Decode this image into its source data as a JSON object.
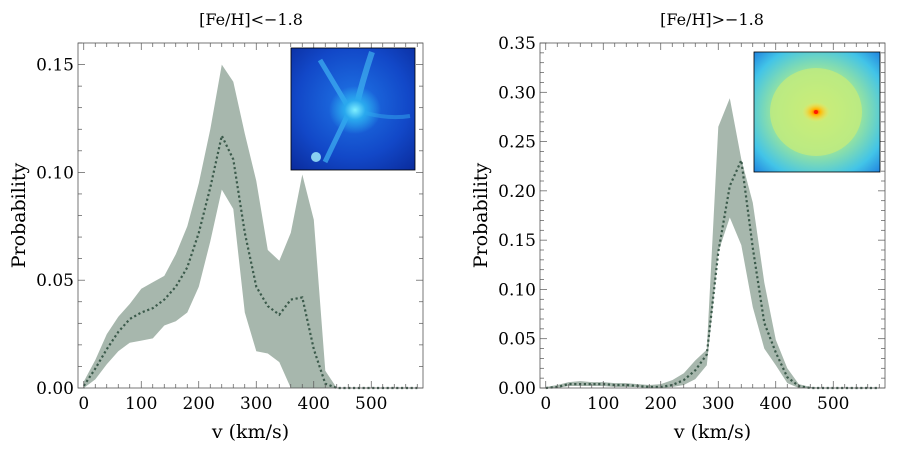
{
  "chart_data": [
    {
      "type": "line",
      "title": "[Fe/H]<−1.8",
      "xlabel": "v (km/s)",
      "ylabel": "Probability",
      "xlim": [
        -10,
        590
      ],
      "ylim": [
        0,
        0.16
      ],
      "xticks": [
        0,
        100,
        200,
        300,
        400,
        500
      ],
      "xtick_labels": [
        "0",
        "100",
        "200",
        "300",
        "400",
        "500"
      ],
      "yticks": [
        0,
        0.05,
        0.1,
        0.15
      ],
      "ytick_labels": [
        "0.00",
        "0.05",
        "0.10",
        "0.15"
      ],
      "inset": "image-inset",
      "colors": {
        "band": "#a7b7ad",
        "line": "#3b5a4b"
      },
      "series": [
        {
          "name": "median",
          "x": [
            0,
            20,
            40,
            60,
            80,
            100,
            120,
            140,
            160,
            180,
            200,
            220,
            240,
            260,
            280,
            300,
            320,
            340,
            360,
            380,
            400,
            420,
            440,
            460,
            480,
            500,
            520,
            540,
            560,
            580
          ],
          "values": [
            0.001,
            0.009,
            0.018,
            0.026,
            0.032,
            0.035,
            0.037,
            0.041,
            0.047,
            0.056,
            0.072,
            0.093,
            0.117,
            0.106,
            0.072,
            0.047,
            0.038,
            0.034,
            0.041,
            0.042,
            0.018,
            0.002,
            0,
            0,
            0,
            0,
            0,
            0,
            0,
            0
          ],
          "lower": [
            0,
            0.004,
            0.011,
            0.017,
            0.021,
            0.022,
            0.023,
            0.029,
            0.031,
            0.035,
            0.047,
            0.068,
            0.092,
            0.083,
            0.035,
            0.017,
            0.016,
            0.012,
            0,
            0,
            0,
            0,
            0,
            0,
            0,
            0,
            0,
            0,
            0,
            0
          ],
          "upper": [
            0.003,
            0.013,
            0.025,
            0.033,
            0.039,
            0.046,
            0.049,
            0.052,
            0.062,
            0.075,
            0.095,
            0.12,
            0.15,
            0.142,
            0.118,
            0.096,
            0.064,
            0.059,
            0.072,
            0.099,
            0.078,
            0.008,
            0,
            0,
            0,
            0,
            0,
            0,
            0,
            0
          ]
        }
      ]
    },
    {
      "type": "line",
      "title": "[Fe/H]>−1.8",
      "xlabel": "v (km/s)",
      "ylabel": "Probability",
      "xlim": [
        -10,
        590
      ],
      "ylim": [
        0,
        0.35
      ],
      "xticks": [
        0,
        100,
        200,
        300,
        400,
        500
      ],
      "xtick_labels": [
        "0",
        "100",
        "200",
        "300",
        "400",
        "500"
      ],
      "yticks": [
        0,
        0.05,
        0.1,
        0.15,
        0.2,
        0.25,
        0.3,
        0.35
      ],
      "ytick_labels": [
        "0.00",
        "0.05",
        "0.10",
        "0.15",
        "0.20",
        "0.25",
        "0.30",
        "0.35"
      ],
      "inset": "image-inset",
      "colors": {
        "band": "#a7b7ad",
        "line": "#3b5a4b"
      },
      "series": [
        {
          "name": "median",
          "x": [
            0,
            20,
            40,
            60,
            80,
            100,
            120,
            140,
            160,
            180,
            200,
            220,
            240,
            260,
            280,
            300,
            320,
            340,
            360,
            380,
            400,
            420,
            440,
            460,
            480,
            500,
            520,
            540,
            560,
            580
          ],
          "values": [
            0,
            0.001,
            0.004,
            0.004,
            0.004,
            0.004,
            0.003,
            0.003,
            0.002,
            0.001,
            0.001,
            0.003,
            0.008,
            0.018,
            0.034,
            0.138,
            0.205,
            0.231,
            0.142,
            0.066,
            0.036,
            0.011,
            0.002,
            0,
            0,
            0,
            0,
            0,
            0,
            0
          ],
          "lower": [
            0,
            0,
            0.002,
            0.002,
            0.002,
            0.002,
            0.001,
            0.001,
            0.001,
            0,
            0,
            0.001,
            0.003,
            0.009,
            0.023,
            0.138,
            0.173,
            0.145,
            0.082,
            0.04,
            0.023,
            0.005,
            0,
            0,
            0,
            0,
            0,
            0,
            0,
            0
          ],
          "upper": [
            0.001,
            0.003,
            0.006,
            0.007,
            0.006,
            0.006,
            0.005,
            0.005,
            0.004,
            0.003,
            0.004,
            0.008,
            0.015,
            0.028,
            0.039,
            0.265,
            0.294,
            0.232,
            0.188,
            0.107,
            0.049,
            0.02,
            0.004,
            0.001,
            0,
            0,
            0,
            0,
            0,
            0
          ]
        }
      ]
    }
  ]
}
